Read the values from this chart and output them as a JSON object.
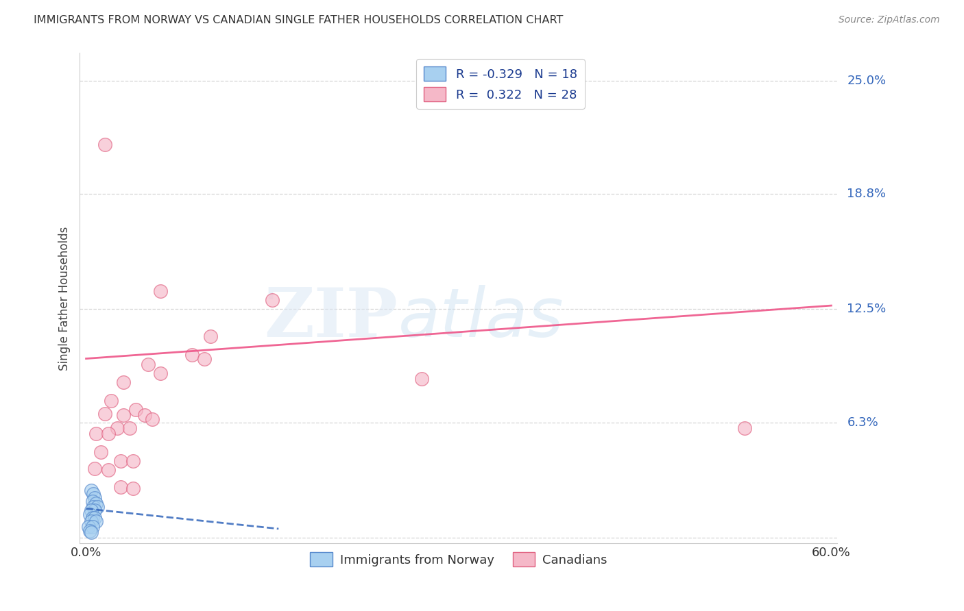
{
  "title": "IMMIGRANTS FROM NORWAY VS CANADIAN SINGLE FATHER HOUSEHOLDS CORRELATION CHART",
  "source": "Source: ZipAtlas.com",
  "ylabel": "Single Father Households",
  "legend_labels": [
    "Immigrants from Norway",
    "Canadians"
  ],
  "blue_r": -0.329,
  "blue_n": 18,
  "pink_r": 0.322,
  "pink_n": 28,
  "xlim": [
    0.0,
    0.6
  ],
  "ylim": [
    0.0,
    0.265
  ],
  "yticks": [
    0.0,
    0.063,
    0.125,
    0.188,
    0.25
  ],
  "ytick_labels": [
    "",
    "6.3%",
    "12.5%",
    "18.8%",
    "25.0%"
  ],
  "xticks": [
    0.0,
    0.06,
    0.12,
    0.18,
    0.24,
    0.3,
    0.36,
    0.42,
    0.48,
    0.54,
    0.6
  ],
  "watermark_zip": "ZIP",
  "watermark_atlas": "atlas",
  "blue_color": "#a8d0f0",
  "pink_color": "#f5b8c8",
  "blue_edge_color": "#5588cc",
  "pink_edge_color": "#e06080",
  "blue_line_color": "#3366bb",
  "pink_line_color": "#ee5588",
  "blue_points": [
    [
      0.004,
      0.026
    ],
    [
      0.006,
      0.024
    ],
    [
      0.007,
      0.022
    ],
    [
      0.005,
      0.02
    ],
    [
      0.008,
      0.019
    ],
    [
      0.006,
      0.017
    ],
    [
      0.009,
      0.017
    ],
    [
      0.007,
      0.015
    ],
    [
      0.004,
      0.015
    ],
    [
      0.003,
      0.013
    ],
    [
      0.005,
      0.011
    ],
    [
      0.007,
      0.011
    ],
    [
      0.004,
      0.009
    ],
    [
      0.008,
      0.009
    ],
    [
      0.002,
      0.006
    ],
    [
      0.005,
      0.006
    ],
    [
      0.003,
      0.004
    ],
    [
      0.004,
      0.003
    ]
  ],
  "pink_points": [
    [
      0.015,
      0.215
    ],
    [
      0.06,
      0.135
    ],
    [
      0.15,
      0.13
    ],
    [
      0.1,
      0.11
    ],
    [
      0.085,
      0.1
    ],
    [
      0.095,
      0.098
    ],
    [
      0.05,
      0.095
    ],
    [
      0.06,
      0.09
    ],
    [
      0.03,
      0.085
    ],
    [
      0.02,
      0.075
    ],
    [
      0.04,
      0.07
    ],
    [
      0.015,
      0.068
    ],
    [
      0.03,
      0.067
    ],
    [
      0.047,
      0.067
    ],
    [
      0.053,
      0.065
    ],
    [
      0.025,
      0.06
    ],
    [
      0.035,
      0.06
    ],
    [
      0.008,
      0.057
    ],
    [
      0.018,
      0.057
    ],
    [
      0.012,
      0.047
    ],
    [
      0.028,
      0.042
    ],
    [
      0.038,
      0.042
    ],
    [
      0.007,
      0.038
    ],
    [
      0.018,
      0.037
    ],
    [
      0.028,
      0.028
    ],
    [
      0.038,
      0.027
    ],
    [
      0.53,
      0.06
    ],
    [
      0.27,
      0.087
    ]
  ],
  "pink_line_x": [
    0.0,
    0.6
  ],
  "pink_line_y": [
    0.098,
    0.127
  ],
  "blue_line_x": [
    0.0,
    0.155
  ],
  "blue_line_y": [
    0.016,
    0.005
  ]
}
